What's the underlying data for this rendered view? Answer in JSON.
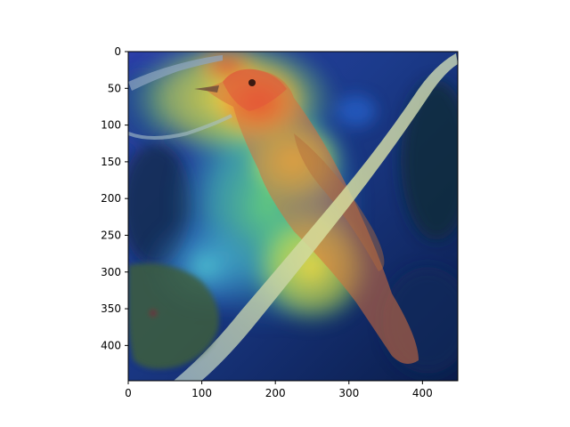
{
  "image": {
    "description_name": "bird-on-branch-heatmap-overlay",
    "colormap": "jet",
    "overlay": true
  },
  "axes": {
    "x_ticks": [
      "0",
      "100",
      "200",
      "300",
      "400"
    ],
    "y_ticks": [
      "0",
      "50",
      "100",
      "150",
      "200",
      "250",
      "300",
      "350",
      "400"
    ],
    "x_range": [
      0,
      448
    ],
    "y_range": [
      0,
      448
    ],
    "y_inverted": true
  },
  "colors": {
    "heat_red": "#ff3b2a",
    "heat_yellow": "#ffe13a",
    "heat_green": "#5fe07a",
    "heat_cyan": "#49d8d8",
    "heat_blue": "#2c4fc8",
    "heat_dark_blue": "#0b1f55",
    "bird_body": "#e07a45",
    "branch": "#c9d39a",
    "leaf": "#3a5a3a"
  }
}
